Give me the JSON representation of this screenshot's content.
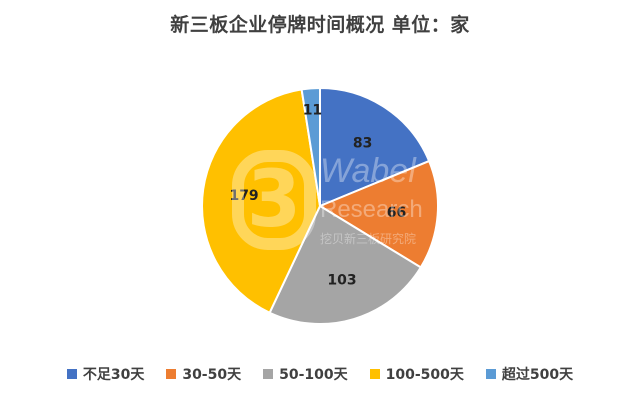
{
  "chart_data": {
    "type": "pie",
    "title": "新三板企业停牌时间概况  单位：家",
    "categories": [
      "不足30天",
      "30-50天",
      "50-100天",
      "100-500天",
      "超过500天"
    ],
    "values": [
      83,
      66,
      103,
      179,
      11
    ],
    "colors": [
      "#4472C4",
      "#ED7D31",
      "#A5A5A5",
      "#FFC000",
      "#5B9BD5"
    ],
    "data_labels": [
      "83",
      "66",
      "103",
      "179",
      "11"
    ],
    "legend_position": "bottom"
  },
  "watermark": {
    "digit": "3",
    "line1": "Wabel",
    "line2": "Research",
    "line3": "挖贝新三板研究院"
  }
}
